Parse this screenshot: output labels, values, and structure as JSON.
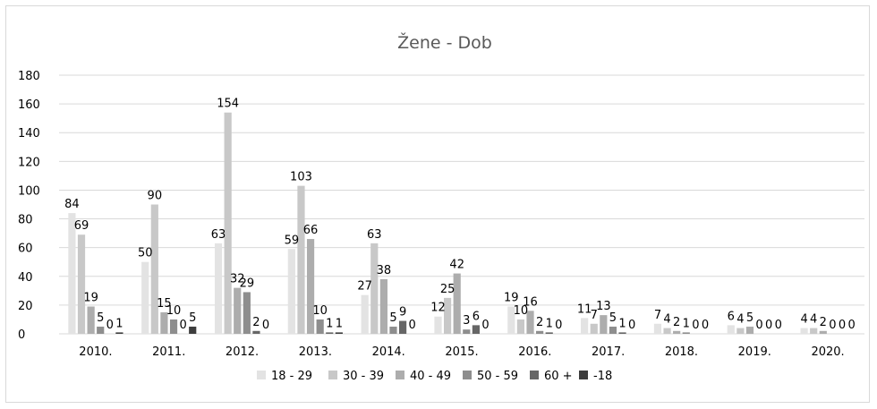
{
  "chart_data": {
    "type": "bar",
    "title": "Žene - Dob",
    "categories": [
      "2010.",
      "2011.",
      "2012.",
      "2013.",
      "2014.",
      "2015.",
      "2016.",
      "2017.",
      "2018.",
      "2019.",
      "2020."
    ],
    "series": [
      {
        "name": "18 - 29",
        "color": "#e3e3e3",
        "values": [
          84,
          50,
          63,
          59,
          27,
          12,
          19,
          11,
          7,
          6,
          4
        ]
      },
      {
        "name": "30 - 39",
        "color": "#c8c8c8",
        "values": [
          69,
          90,
          154,
          103,
          63,
          25,
          10,
          7,
          4,
          4,
          4
        ]
      },
      {
        "name": "40 - 49",
        "color": "#adadad",
        "values": [
          19,
          15,
          32,
          66,
          38,
          42,
          16,
          13,
          2,
          5,
          2
        ]
      },
      {
        "name": "50 - 59",
        "color": "#8e8e8e",
        "values": [
          5,
          10,
          29,
          10,
          5,
          3,
          2,
          5,
          1,
          0,
          0
        ]
      },
      {
        "name": "60 +",
        "color": "#666666",
        "values": [
          0,
          0,
          2,
          1,
          9,
          6,
          1,
          1,
          0,
          0,
          0
        ]
      },
      {
        "name": "-18",
        "color": "#3d3d3d",
        "values": [
          1,
          5,
          0,
          1,
          0,
          0,
          0,
          0,
          0,
          0,
          0
        ]
      }
    ],
    "yticks": [
      "0",
      "20",
      "40",
      "60",
      "80",
      "100",
      "120",
      "140",
      "160",
      "180"
    ],
    "ylim": [
      0,
      180
    ],
    "grid": true,
    "legend": "bottom",
    "xlabel": "",
    "ylabel": ""
  }
}
